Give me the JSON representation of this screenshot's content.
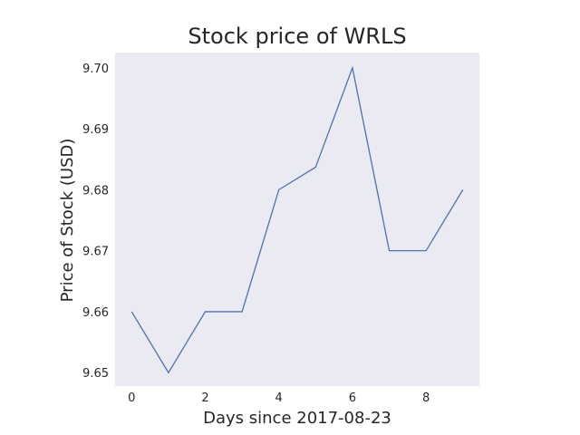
{
  "chart_data": {
    "type": "line",
    "title": "Stock price of WRLS",
    "xlabel": "Days since 2017-08-23",
    "ylabel": "Price of Stock (USD)",
    "x": [
      0,
      1,
      2,
      3,
      4,
      5,
      6,
      7,
      8,
      9
    ],
    "series": [
      {
        "values": [
          9.66,
          9.65,
          9.66,
          9.66,
          9.68,
          9.6837,
          9.7,
          9.67,
          9.67,
          9.68
        ]
      }
    ],
    "xlim": [
      -0.45,
      9.45
    ],
    "ylim": [
      9.6478,
      9.7025
    ],
    "x_ticks": [
      0,
      2,
      4,
      6,
      8
    ],
    "x_tick_labels": [
      "0",
      "2",
      "4",
      "6",
      "8"
    ],
    "y_ticks": [
      9.65,
      9.66,
      9.67,
      9.68,
      9.69,
      9.7
    ],
    "y_tick_labels": [
      "9.65",
      "9.66",
      "9.67",
      "9.68",
      "9.69",
      "9.70"
    ],
    "grid": false,
    "line_color": "#4c72b0",
    "plot_background": "#eaeaf2"
  }
}
